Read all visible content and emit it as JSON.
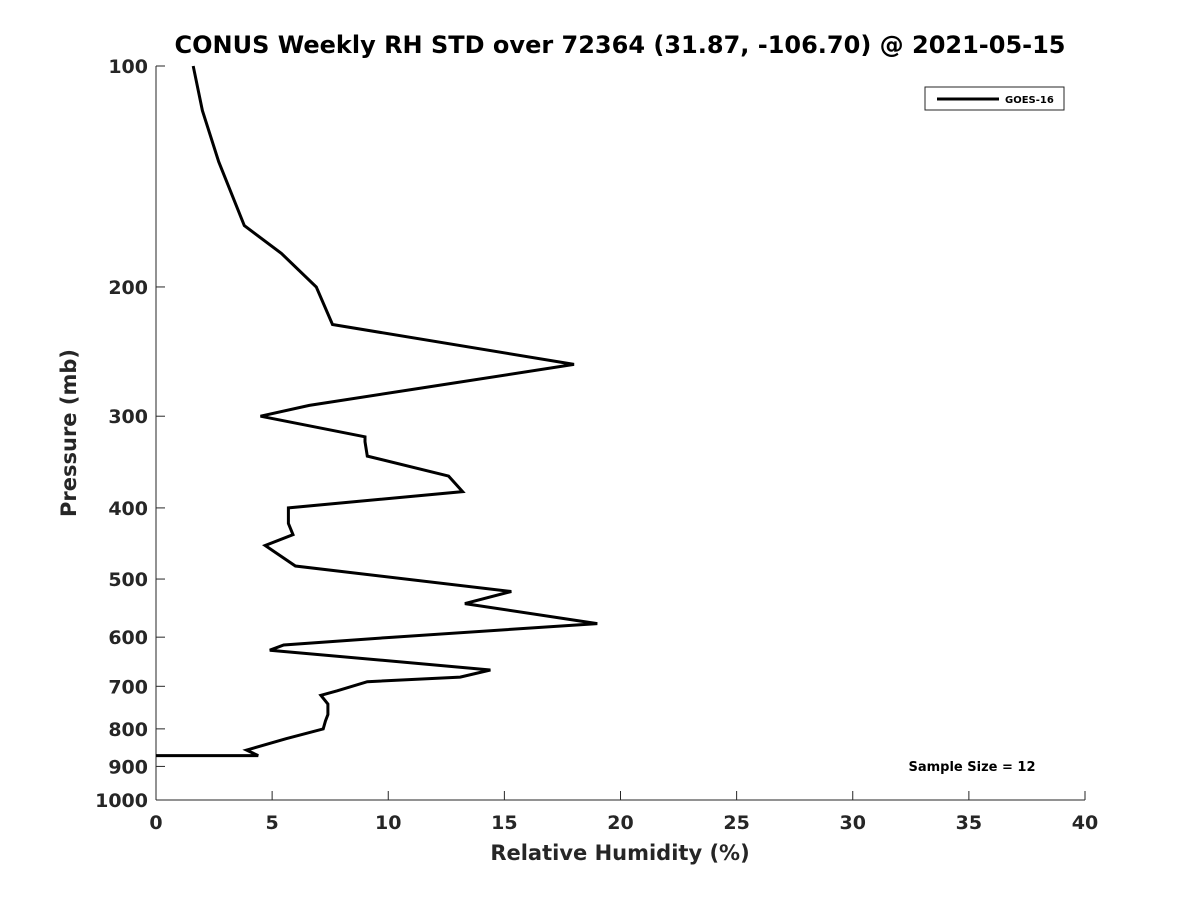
{
  "chart_data": {
    "type": "line",
    "title": "CONUS Weekly RH STD over 72364 (31.87, -106.70) @ 2021-05-15",
    "xlabel": "Relative Humidity (%)",
    "ylabel": "Pressure (mb)",
    "xlim": [
      0,
      40
    ],
    "ylim": [
      100,
      1000
    ],
    "y_scale": "log",
    "y_reversed": true,
    "x_ticks": [
      0,
      5,
      10,
      15,
      20,
      25,
      30,
      35,
      40
    ],
    "y_ticks": [
      100,
      200,
      300,
      400,
      500,
      600,
      700,
      800,
      900,
      1000
    ],
    "grid": false,
    "legend_position": "top-right",
    "series": [
      {
        "name": "GOES-16",
        "color": "#000000",
        "x": [
          1.6,
          2.0,
          2.7,
          3.8,
          5.4,
          6.9,
          7.6,
          18.0,
          11.3,
          6.6,
          4.5,
          9.0,
          9.0,
          9.1,
          12.6,
          13.2,
          5.7,
          5.7,
          5.9,
          4.7,
          6.0,
          15.3,
          13.3,
          19.0,
          10.2,
          5.5,
          4.9,
          14.4,
          13.1,
          9.1,
          7.8,
          7.1,
          7.4,
          7.4,
          7.3,
          7.2,
          5.6,
          3.9,
          4.4,
          0.0
        ],
        "y": [
          100,
          115,
          135,
          165,
          180,
          200,
          225,
          255,
          275,
          290,
          300,
          320,
          325,
          340,
          362,
          380,
          400,
          420,
          435,
          450,
          480,
          520,
          540,
          575,
          600,
          615,
          625,
          665,
          680,
          690,
          710,
          720,
          740,
          765,
          780,
          800,
          825,
          855,
          870,
          870
        ]
      }
    ],
    "annotation": "Sample Size = 12"
  }
}
